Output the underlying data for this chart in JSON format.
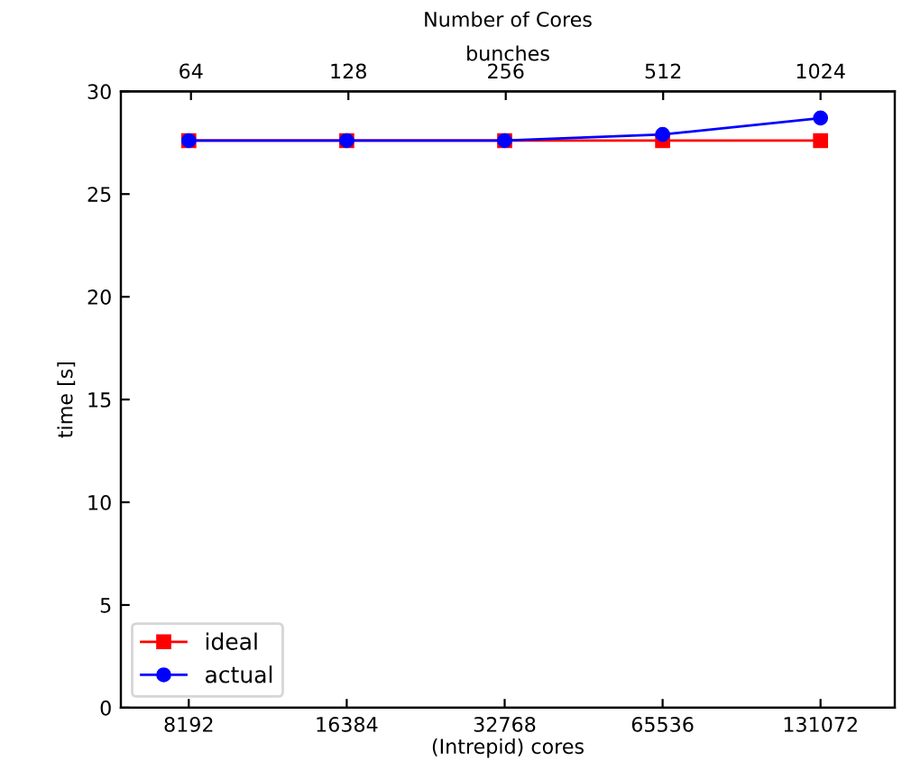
{
  "chart_data": {
    "type": "line",
    "title": "Number of Cores",
    "xlabel": "(Intrepid) cores",
    "x2label": "bunches",
    "ylabel": "time [s]",
    "categories": [
      "8192",
      "16384",
      "32768",
      "65536",
      "131072"
    ],
    "log": "x2",
    "x2lim": [
      47,
      1420
    ],
    "x2ticks": [
      64,
      128,
      256,
      512,
      1024
    ],
    "series": [
      {
        "name": "ideal",
        "color": "#ff0000",
        "marker": "square",
        "values": [
          27.6,
          27.6,
          27.6,
          27.6,
          27.6
        ]
      },
      {
        "name": "actual",
        "color": "#0000ff",
        "marker": "circle",
        "values": [
          27.6,
          27.6,
          27.6,
          27.9,
          28.7
        ]
      }
    ],
    "ylim": [
      0,
      30
    ],
    "yticks": [
      0,
      5,
      10,
      15,
      20,
      25,
      30
    ],
    "grid": false,
    "legend": "bottom left",
    "line_style": "solid"
  }
}
